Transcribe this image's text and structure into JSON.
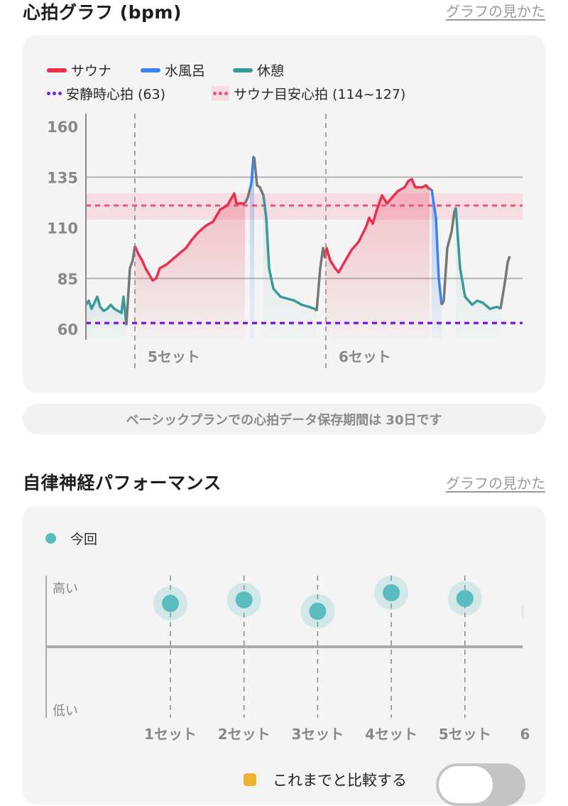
{
  "heart": {
    "title": "心拍グラフ (bpm)",
    "guide_link": "グラフの見かた",
    "legend": {
      "sauna": "サウナ",
      "cold_bath": "水風呂",
      "rest": "休憩",
      "resting_hr": "安静時心拍 (63)",
      "sauna_target": "サウナ目安心拍 (114~127)"
    },
    "banner": "ベーシックプランでの心拍データ保存期間は 30日です"
  },
  "autonomic": {
    "title": "自律神経パフォーマンス",
    "guide_link": "グラフの見かた",
    "legend_current": "今回",
    "compare_label": "これまでと比較する",
    "compare_toggle_on": false
  },
  "colors": {
    "sauna": "#e8314f",
    "cold_bath": "#3b82f0",
    "rest": "#3a9a9a",
    "transition": "#777777",
    "resting": "#7a1ee0",
    "target": "#e8557a",
    "point": "#5bbcc0",
    "badge": "#f2b233"
  },
  "chart_data": [
    {
      "type": "line",
      "title": "心拍グラフ (bpm)",
      "ylabel": "bpm",
      "ylim": [
        60,
        160
      ],
      "yticks": [
        "160",
        "135",
        "110",
        "85",
        "60"
      ],
      "grid_values": [
        135,
        85
      ],
      "resting_hr": 63,
      "target_band": [
        114,
        127
      ],
      "target_line": 121,
      "set_markers": [
        {
          "x": 69,
          "label": "5セット"
        },
        {
          "x": 338,
          "label": "6セット"
        }
      ],
      "segments": [
        {
          "kind": "rest",
          "points": [
            [
              0,
              72
            ],
            [
              4,
              74
            ],
            [
              8,
              70
            ],
            [
              12,
              73
            ],
            [
              16,
              76
            ],
            [
              20,
              71
            ],
            [
              25,
              69
            ],
            [
              30,
              70
            ],
            [
              35,
              72
            ],
            [
              40,
              70
            ],
            [
              45,
              69
            ],
            [
              50,
              68
            ],
            [
              53,
              76
            ],
            [
              57,
              62
            ]
          ]
        },
        {
          "kind": "transition",
          "points": [
            [
              57,
              62
            ],
            [
              62,
              90
            ],
            [
              66,
              94
            ],
            [
              69,
              101
            ]
          ]
        },
        {
          "kind": "sauna",
          "points": [
            [
              69,
              101
            ],
            [
              74,
              97
            ],
            [
              79,
              94
            ],
            [
              84,
              90
            ],
            [
              89,
              87
            ],
            [
              94,
              84
            ],
            [
              99,
              85
            ],
            [
              104,
              90
            ],
            [
              114,
              92
            ],
            [
              124,
              95
            ],
            [
              134,
              98
            ],
            [
              141,
              100
            ],
            [
              149,
              104
            ],
            [
              159,
              108
            ],
            [
              169,
              111
            ],
            [
              179,
              113
            ],
            [
              189,
              119
            ],
            [
              199,
              121
            ],
            [
              204,
              124
            ],
            [
              209,
              127
            ],
            [
              212,
              122
            ],
            [
              219,
              122
            ],
            [
              224,
              122
            ]
          ]
        },
        {
          "kind": "transition",
          "points": [
            [
              224,
              122
            ],
            [
              228,
              125
            ],
            [
              231,
              129
            ]
          ]
        },
        {
          "kind": "cold_bath",
          "points": [
            [
              231,
              129
            ],
            [
              233,
              132
            ],
            [
              236,
              145
            ],
            [
              237,
              145
            ]
          ]
        },
        {
          "kind": "transition",
          "points": [
            [
              237,
              145
            ],
            [
              241,
              131
            ],
            [
              245,
              130
            ],
            [
              250,
              126
            ]
          ]
        },
        {
          "kind": "rest",
          "points": [
            [
              250,
              126
            ],
            [
              254,
              115
            ],
            [
              258,
              90
            ],
            [
              264,
              80
            ],
            [
              274,
              76
            ],
            [
              284,
              75
            ],
            [
              294,
              74
            ],
            [
              304,
              72
            ],
            [
              314,
              71
            ],
            [
              322,
              70
            ],
            [
              325,
              69
            ]
          ]
        },
        {
          "kind": "transition",
          "points": [
            [
              325,
              69
            ],
            [
              330,
              90
            ],
            [
              334,
              100
            ],
            [
              337,
              95
            ]
          ]
        },
        {
          "kind": "sauna",
          "points": [
            [
              337,
              95
            ],
            [
              339,
              100
            ],
            [
              344,
              94
            ],
            [
              351,
              90
            ],
            [
              356,
              88
            ],
            [
              364,
              93
            ],
            [
              374,
              99
            ],
            [
              384,
              103
            ],
            [
              394,
              110
            ],
            [
              399,
              115
            ],
            [
              404,
              112
            ],
            [
              409,
              118
            ],
            [
              417,
              126
            ],
            [
              424,
              122
            ],
            [
              429,
              124
            ],
            [
              439,
              128
            ],
            [
              449,
              130
            ],
            [
              454,
              133
            ],
            [
              459,
              134
            ],
            [
              464,
              130
            ],
            [
              474,
              130
            ],
            [
              479,
              131
            ],
            [
              484,
              129
            ]
          ]
        },
        {
          "kind": "transition",
          "points": [
            [
              484,
              129
            ],
            [
              487,
              129
            ]
          ]
        },
        {
          "kind": "cold_bath",
          "points": [
            [
              487,
              129
            ],
            [
              489,
              124
            ],
            [
              493,
              115
            ],
            [
              497,
              85
            ],
            [
              501,
              72
            ]
          ]
        },
        {
          "kind": "transition",
          "points": [
            [
              501,
              72
            ],
            [
              504,
              74
            ],
            [
              509,
              100
            ],
            [
              515,
              108
            ],
            [
              519,
              118
            ],
            [
              521,
              120
            ]
          ]
        },
        {
          "kind": "rest",
          "points": [
            [
              521,
              120
            ],
            [
              527,
              90
            ],
            [
              534,
              76
            ],
            [
              544,
              72
            ],
            [
              551,
              74
            ],
            [
              559,
              73
            ],
            [
              569,
              70
            ],
            [
              579,
              71
            ],
            [
              584,
              70
            ]
          ]
        },
        {
          "kind": "transition",
          "points": [
            [
              584,
              70
            ],
            [
              591,
              85
            ],
            [
              594,
              93
            ],
            [
              597,
              96
            ]
          ]
        }
      ]
    },
    {
      "type": "scatter",
      "title": "自律神経パフォーマンス",
      "ylabel_high": "高い",
      "ylabel_low": "低い",
      "ylim": [
        -1,
        1
      ],
      "categories": [
        "1セット",
        "2セット",
        "3セット",
        "4セット",
        "5セット",
        "6"
      ],
      "series": [
        {
          "name": "今回",
          "values": [
            0.61,
            0.66,
            0.5,
            0.76,
            0.68,
            0.5
          ]
        }
      ]
    }
  ]
}
